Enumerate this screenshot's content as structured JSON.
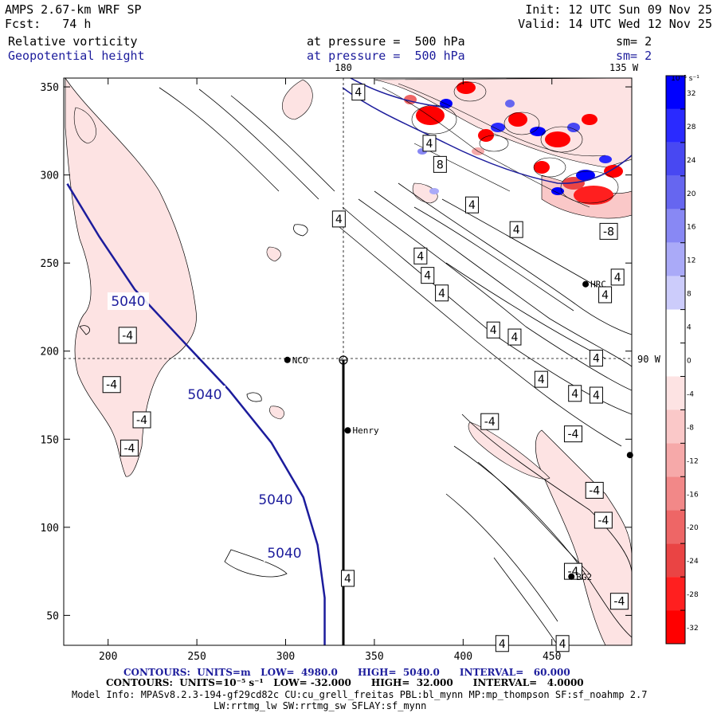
{
  "header": {
    "model": "AMPS 2.67-km WRF SP",
    "fcst": "Fcst:   74 h",
    "init": "Init: 12 UTC Sun 09 Nov 25",
    "valid": "Valid: 14 UTC Wed 12 Nov 25",
    "field1": "Relative vorticity",
    "field1_level": "at pressure =  500 hPa",
    "field1_sm": "sm= 2",
    "field2": "Geopotential height",
    "field2_level": "at pressure =  500 hPa",
    "field2_sm": "sm= 2"
  },
  "map_labels": {
    "lon_180": "180",
    "lon_135w": "135 W",
    "lon_90w": "90 W",
    "stations": [
      "NCO",
      "Henry",
      "HRC",
      "BG2"
    ]
  },
  "colorbar": {
    "unit_label": "10⁻⁵ s⁻¹",
    "ticks": [
      "32",
      "28",
      "24",
      "20",
      "16",
      "12",
      "8",
      "4",
      "0",
      "-4",
      "-8",
      "-12",
      "-16",
      "-20",
      "-24",
      "-28",
      "-32"
    ],
    "colors": [
      "#0000ff",
      "#2a2aff",
      "#4848f2",
      "#6666f0",
      "#8888f4",
      "#aaaaf8",
      "#ccccfb",
      "#ffffff",
      "#ffffff",
      "#fde3e3",
      "#fac8c8",
      "#f6a9a9",
      "#f28888",
      "#ee6666",
      "#ea4444",
      "#ff1f1f",
      "#ff0000"
    ]
  },
  "footer": {
    "contours1": "CONTOURS:  UNITS=m   LOW=  4980.0      HIGH=  5040.0      INTERVAL=   60.000",
    "contours2": "CONTOURS:  UNITS=10⁻⁵ s⁻¹   LOW= -32.000      HIGH=  32.000      INTERVAL=   4.0000",
    "model_info": "Model Info: MPASv8.2.3-194-gf29cd82c CU:cu_grell_freitas PBL:bl_mynn MP:mp_thompson SF:sf_noahmp 2.7",
    "model_info2": "LW:rrtmg_lw SW:rrtmg_sw SFLAY:sf_mynn"
  },
  "chart_data": {
    "type": "contour-map",
    "title": "Relative vorticity / Geopotential height at 500 hPa",
    "x_ticks": [
      200,
      250,
      300,
      350,
      400,
      450
    ],
    "y_ticks": [
      50,
      100,
      150,
      200,
      250,
      300,
      350
    ],
    "xlim": [
      175,
      495
    ],
    "ylim": [
      33,
      355
    ],
    "height_contour_labels": [
      "5040",
      "5040",
      "5040",
      "5040"
    ],
    "height_contour": [
      [
        177,
        295
      ],
      [
        195,
        265
      ],
      [
        215,
        235
      ],
      [
        240,
        208
      ],
      [
        268,
        178
      ],
      [
        292,
        148
      ],
      [
        310,
        117
      ],
      [
        318,
        90
      ],
      [
        322,
        60
      ],
      [
        322,
        33
      ]
    ],
    "vorticity_labels": [
      {
        "text": "4",
        "x": 341,
        "y": 347
      },
      {
        "text": "4",
        "x": 330,
        "y": 275
      },
      {
        "text": "4",
        "x": 335,
        "y": 71
      },
      {
        "text": "4",
        "x": 376,
        "y": 254
      },
      {
        "text": "4",
        "x": 380,
        "y": 243
      },
      {
        "text": "4",
        "x": 388,
        "y": 233
      },
      {
        "text": "4",
        "x": 405,
        "y": 283
      },
      {
        "text": "4",
        "x": 417,
        "y": 212
      },
      {
        "text": "4",
        "x": 429,
        "y": 208
      },
      {
        "text": "4",
        "x": 444,
        "y": 184
      },
      {
        "text": "4",
        "x": 463,
        "y": 176
      },
      {
        "text": "4",
        "x": 475,
        "y": 175
      },
      {
        "text": "4",
        "x": 475,
        "y": 196
      },
      {
        "text": "4",
        "x": 480,
        "y": 232
      },
      {
        "text": "4",
        "x": 487,
        "y": 242
      },
      {
        "text": "4",
        "x": 422,
        "y": 34
      },
      {
        "text": "4",
        "x": 456,
        "y": 34
      },
      {
        "text": "4",
        "x": 430,
        "y": 269
      },
      {
        "text": "4",
        "x": 381,
        "y": 318
      },
      {
        "text": "-4",
        "x": 211,
        "y": 209
      },
      {
        "text": "-4",
        "x": 202,
        "y": 181
      },
      {
        "text": "-4",
        "x": 219,
        "y": 161
      },
      {
        "text": "-4",
        "x": 212,
        "y": 145
      },
      {
        "text": "-4",
        "x": 415,
        "y": 160
      },
      {
        "text": "-4",
        "x": 462,
        "y": 153
      },
      {
        "text": "-4",
        "x": 474,
        "y": 121
      },
      {
        "text": "-4",
        "x": 479,
        "y": 104
      },
      {
        "text": "-4",
        "x": 462,
        "y": 75
      },
      {
        "text": "-4",
        "x": 488,
        "y": 58
      },
      {
        "text": "-8",
        "x": 482,
        "y": 268
      },
      {
        "text": "8",
        "x": 387,
        "y": 306
      }
    ],
    "stations": [
      {
        "name": "NCO",
        "x": 301,
        "y": 195
      },
      {
        "name": "Henry",
        "x": 335,
        "y": 155
      },
      {
        "name": "HRC",
        "x": 469,
        "y": 238
      },
      {
        "name": "BG2",
        "x": 461,
        "y": 72
      },
      {
        "name": "",
        "x": 494,
        "y": 141
      }
    ],
    "colorbar_range": [
      -32,
      32
    ],
    "colorbar_interval": 4
  }
}
